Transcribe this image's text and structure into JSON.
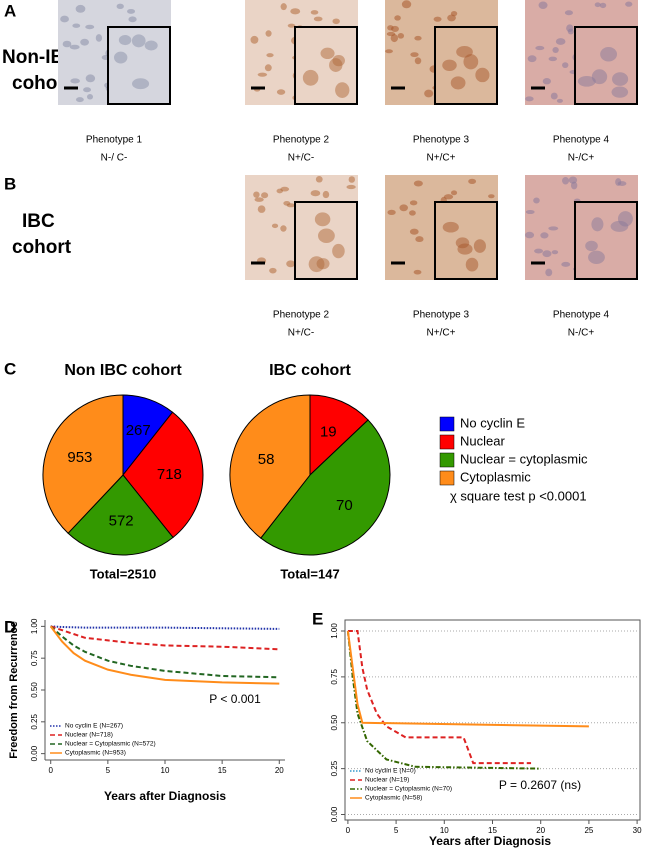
{
  "figure": {
    "panel_a": {
      "letter": "A",
      "cohort_label": [
        "Non-IBC",
        "cohort"
      ],
      "images": [
        {
          "caption": "Phenotype 1",
          "code": "N-/ C-"
        },
        {
          "caption": "Phenotype 2",
          "code": "N+/C-"
        },
        {
          "caption": "Phenotype 3",
          "code": "N+/C+"
        },
        {
          "caption": "Phenotype 4",
          "code": "N-/C+"
        }
      ]
    },
    "panel_b": {
      "letter": "B",
      "cohort_label": [
        "IBC",
        "cohort"
      ],
      "images": [
        {
          "caption": "Phenotype 2",
          "code": "N+/C-"
        },
        {
          "caption": "Phenotype 3",
          "code": "N+/C+"
        },
        {
          "caption": "Phenotype 4",
          "code": "N-/C+"
        }
      ]
    },
    "panel_c_letter": "C",
    "panel_d_letter": "D",
    "panel_e_letter": "E"
  },
  "chart_data": [
    {
      "type": "pie",
      "title": "Non IBC cohort",
      "categories": [
        "No cyclin E",
        "Nuclear",
        "Nuclear = cytoplasmic",
        "Cytoplasmic"
      ],
      "values": [
        267,
        718,
        572,
        953
      ],
      "colors": [
        "#0000ff",
        "#ff0000",
        "#339900",
        "#ff8c1a"
      ],
      "total_label": "Total=2510",
      "legend": "right",
      "annotation": "χ square test  p <0.0001"
    },
    {
      "type": "pie",
      "title": "IBC cohort",
      "categories": [
        "Nuclear",
        "Nuclear = cytoplasmic",
        "Cytoplasmic"
      ],
      "values": [
        19,
        70,
        58
      ],
      "colors": [
        "#ff0000",
        "#339900",
        "#ff8c1a"
      ],
      "total_label": "Total=147"
    },
    {
      "type": "line",
      "x_label": "Years after Diagnosis",
      "y_label": "Freedom from Recurrence",
      "annotation": "P < 0.001",
      "xlim": [
        -0.5,
        20.5
      ],
      "ylim": [
        -0.05,
        1.05
      ],
      "xticks": [
        0,
        5,
        10,
        15,
        20
      ],
      "yticks": [
        {
          "value": 0,
          "label": "0.00"
        },
        {
          "value": 0.25,
          "label": "0.25"
        },
        {
          "value": 0.5,
          "label": "0.50"
        },
        {
          "value": 0.75,
          "label": "0.75"
        },
        {
          "value": 1,
          "label": "1.00"
        }
      ],
      "grid": false,
      "legend": "lower left",
      "series": [
        {
          "name": "No cyclin E (N=267)",
          "color": "#2233aa",
          "style": "dotted",
          "x": [
            0,
            1,
            3,
            5,
            10,
            15,
            20
          ],
          "values": [
            1,
            0.995,
            0.99,
            0.99,
            0.99,
            0.985,
            0.98
          ]
        },
        {
          "name": "Nuclear (N=718)",
          "color": "#dd2222",
          "style": "dashed",
          "x": [
            0,
            1,
            2,
            3,
            5,
            7,
            10,
            15,
            20
          ],
          "values": [
            1,
            0.97,
            0.94,
            0.91,
            0.89,
            0.87,
            0.85,
            0.84,
            0.82
          ]
        },
        {
          "name": "Nuclear = Cytoplasmic (N=572)",
          "color": "#226622",
          "style": "dashed",
          "x": [
            0,
            1,
            2,
            3,
            5,
            7,
            10,
            15,
            20
          ],
          "values": [
            1,
            0.92,
            0.85,
            0.8,
            0.73,
            0.69,
            0.65,
            0.61,
            0.6
          ]
        },
        {
          "name": "Cytoplasmic (N=953)",
          "color": "#ff8c1a",
          "style": "solid",
          "x": [
            0,
            1,
            2,
            3,
            5,
            7,
            10,
            15,
            20
          ],
          "values": [
            1,
            0.88,
            0.79,
            0.73,
            0.66,
            0.62,
            0.58,
            0.56,
            0.55
          ]
        }
      ]
    },
    {
      "type": "line",
      "x_label": "Years after Diagnosis",
      "annotation": "P = 0.2607 (ns)",
      "xlim": [
        -0.3,
        30.3
      ],
      "ylim": [
        -0.03,
        1.06
      ],
      "xticks": [
        0,
        5,
        10,
        15,
        20,
        25,
        30
      ],
      "yticks": [
        {
          "value": 0,
          "label": "0.00"
        },
        {
          "value": 0.25,
          "label": "0.25"
        },
        {
          "value": 0.5,
          "label": "0.50"
        },
        {
          "value": 0.75,
          "label": "0.75"
        },
        {
          "value": 1,
          "label": "1.00"
        }
      ],
      "grid": true,
      "legend": "lower left",
      "series": [
        {
          "name": "No cyclin E (N=0)",
          "color": "#3399cc",
          "style": "dotted",
          "x": [],
          "values": []
        },
        {
          "name": "Nuclear (N=19)",
          "color": "#dd2222",
          "style": "dashed",
          "x": [
            0,
            1,
            1.5,
            2,
            3,
            4,
            6,
            12,
            13,
            19
          ],
          "values": [
            1,
            1,
            0.8,
            0.68,
            0.55,
            0.48,
            0.42,
            0.42,
            0.28,
            0.28
          ]
        },
        {
          "name": "Nuclear = Cytoplasmic (N=70)",
          "color": "#336600",
          "style": "dashdot",
          "x": [
            0,
            0.5,
            1,
            2,
            4,
            7,
            20
          ],
          "values": [
            1,
            0.75,
            0.55,
            0.4,
            0.3,
            0.26,
            0.25
          ]
        },
        {
          "name": "Cytoplasmic (N=58)",
          "color": "#ff8c1a",
          "style": "solid",
          "x": [
            0,
            0.5,
            1,
            1.5,
            25
          ],
          "values": [
            1,
            0.8,
            0.6,
            0.5,
            0.48
          ]
        }
      ]
    }
  ]
}
